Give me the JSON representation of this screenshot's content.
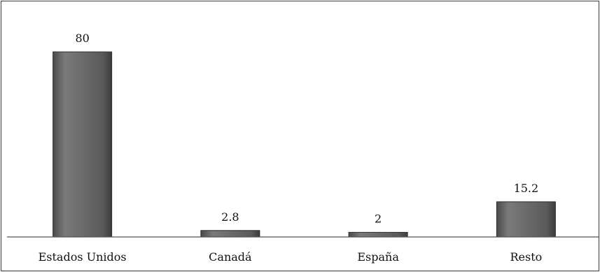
{
  "chart_data": {
    "type": "bar",
    "title": "",
    "xlabel": "",
    "ylabel": "",
    "categories": [
      "Estados Unidos",
      "Canadá",
      "España",
      "Resto"
    ],
    "values": [
      80,
      2.8,
      2,
      15.2
    ],
    "value_labels": [
      "80",
      "2.8",
      "2",
      "15.2"
    ],
    "ylim": [
      0,
      100
    ],
    "grid": false,
    "legend": "none",
    "colors": {
      "bar": "#6b6b6b",
      "bar_edge": "#2e2e2e",
      "bar_highlight": "#9a9a9a",
      "axis": "#555555"
    }
  }
}
